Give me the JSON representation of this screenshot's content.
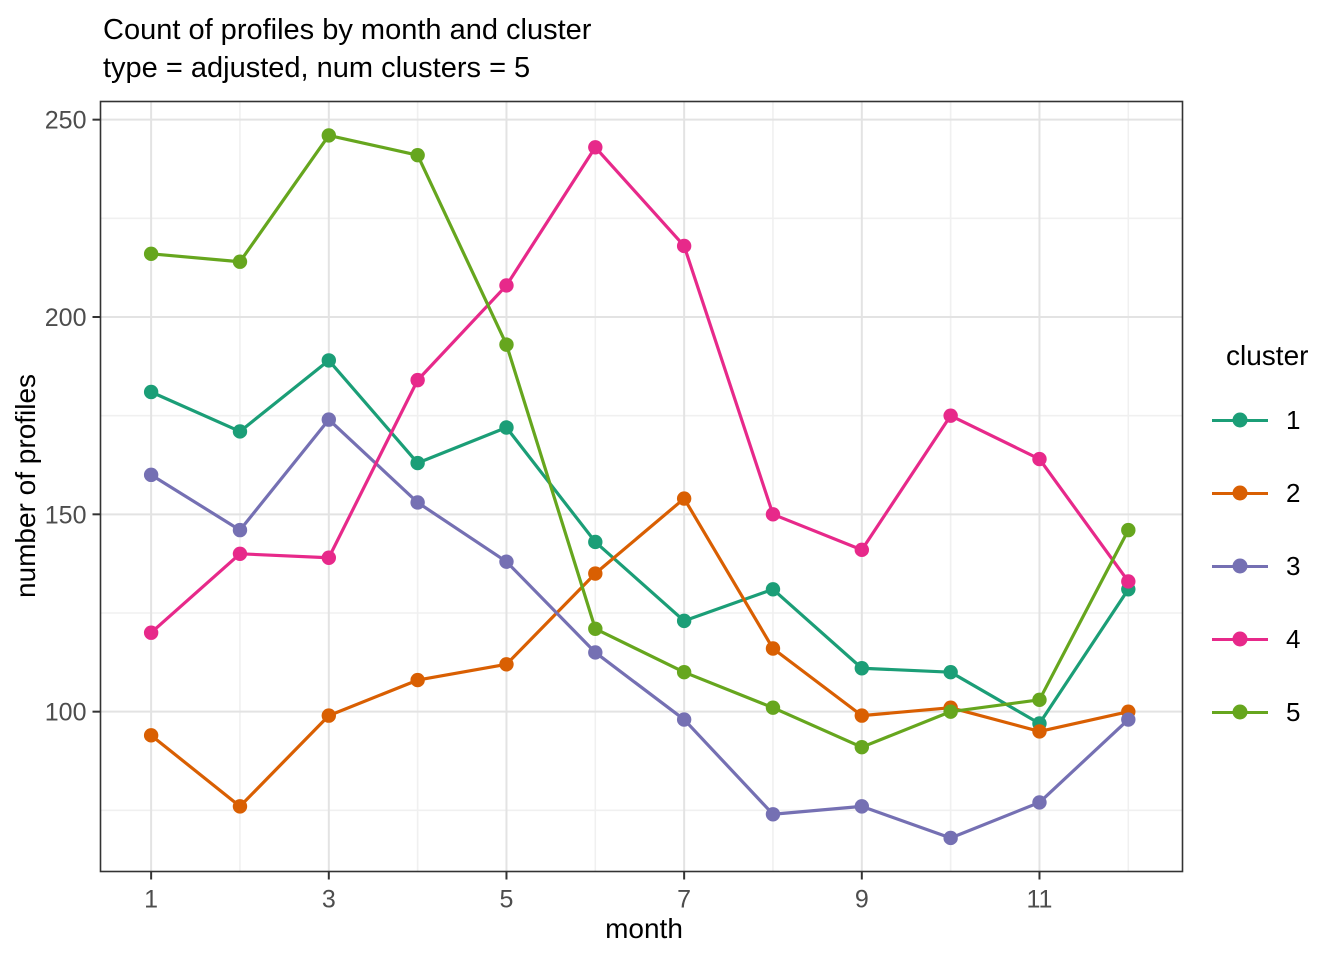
{
  "chart_data": {
    "type": "line",
    "title": "Count of profiles by month and cluster",
    "subtitle": "type = adjusted, num clusters = 5",
    "xlabel": "month",
    "ylabel": "number of profiles",
    "legend_title": "cluster",
    "legend_position": "right",
    "x": [
      1,
      2,
      3,
      4,
      5,
      6,
      7,
      8,
      9,
      10,
      11,
      12
    ],
    "x_ticks": [
      1,
      3,
      5,
      7,
      9,
      11
    ],
    "x_minor_ticks": [
      2,
      4,
      6,
      8,
      10,
      12
    ],
    "y_ticks": [
      100,
      150,
      200,
      250
    ],
    "y_minor_ticks": [
      75,
      125,
      175,
      225
    ],
    "xlim": [
      0.43,
      12.61
    ],
    "ylim": [
      59.5,
      254.6
    ],
    "grid": true,
    "series": [
      {
        "name": "1",
        "color": "#1B9E77",
        "values": [
          181,
          171,
          189,
          163,
          172,
          143,
          123,
          131,
          111,
          110,
          97,
          131
        ]
      },
      {
        "name": "2",
        "color": "#D95F02",
        "values": [
          94,
          76,
          99,
          108,
          112,
          135,
          154,
          116,
          99,
          101,
          95,
          100
        ]
      },
      {
        "name": "3",
        "color": "#7570B3",
        "values": [
          160,
          146,
          174,
          153,
          138,
          115,
          98,
          74,
          76,
          68,
          77,
          98
        ]
      },
      {
        "name": "4",
        "color": "#E7298A",
        "values": [
          120,
          140,
          139,
          184,
          208,
          243,
          218,
          150,
          141,
          175,
          164,
          133
        ]
      },
      {
        "name": "5",
        "color": "#66A61E",
        "values": [
          216,
          214,
          246,
          241,
          193,
          121,
          110,
          101,
          91,
          100,
          103,
          146
        ]
      }
    ],
    "theme": {
      "panel_border": "#333333",
      "grid_major": "#E3E3E3",
      "grid_minor": "#F0F0F0",
      "tick_color": "#333333",
      "tick_label_color": "#4D4D4D",
      "text_color": "#000000",
      "background": "#FFFFFF"
    }
  }
}
